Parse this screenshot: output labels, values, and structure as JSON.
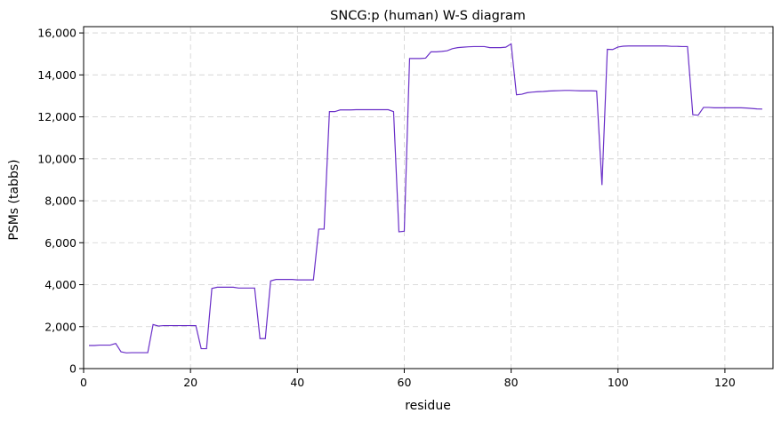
{
  "chart_data": {
    "type": "line",
    "title": "SNCG:p (human) W-S diagram",
    "xlabel": "residue",
    "ylabel": "PSMs (tabbs)",
    "xlim": [
      0,
      129
    ],
    "ylim": [
      0,
      16300
    ],
    "xticks": [
      0,
      20,
      40,
      60,
      80,
      100,
      120
    ],
    "xtick_labels": [
      "0",
      "20",
      "40",
      "60",
      "80",
      "100",
      "120"
    ],
    "yticks": [
      0,
      2000,
      4000,
      6000,
      8000,
      10000,
      12000,
      14000,
      16000
    ],
    "ytick_labels": [
      "0",
      "2,000",
      "4,000",
      "6,000",
      "8,000",
      "10,000",
      "12,000",
      "14,000",
      "16,000"
    ],
    "grid": true,
    "line_color": "#6a2fc8",
    "x": [
      1,
      2,
      3,
      4,
      5,
      6,
      7,
      8,
      9,
      10,
      11,
      12,
      13,
      14,
      15,
      16,
      17,
      18,
      19,
      20,
      21,
      22,
      23,
      24,
      25,
      26,
      27,
      28,
      29,
      30,
      31,
      32,
      33,
      34,
      35,
      36,
      37,
      38,
      39,
      40,
      41,
      42,
      43,
      44,
      45,
      46,
      47,
      48,
      49,
      50,
      51,
      52,
      53,
      54,
      55,
      56,
      57,
      58,
      59,
      60,
      61,
      62,
      63,
      64,
      65,
      66,
      67,
      68,
      69,
      70,
      71,
      72,
      73,
      74,
      75,
      76,
      77,
      78,
      79,
      80,
      81,
      82,
      83,
      84,
      85,
      86,
      87,
      88,
      89,
      90,
      91,
      92,
      93,
      94,
      95,
      96,
      97,
      98,
      99,
      100,
      101,
      102,
      103,
      104,
      105,
      106,
      107,
      108,
      109,
      110,
      111,
      112,
      113,
      114,
      115,
      116,
      117,
      118,
      119,
      120,
      121,
      122,
      123,
      124,
      125,
      126,
      127
    ],
    "y": [
      1100,
      1100,
      1120,
      1120,
      1120,
      1200,
      800,
      750,
      760,
      760,
      760,
      760,
      2100,
      2030,
      2050,
      2050,
      2050,
      2050,
      2050,
      2050,
      2050,
      950,
      950,
      3820,
      3880,
      3880,
      3880,
      3880,
      3840,
      3840,
      3840,
      3840,
      1430,
      1430,
      4180,
      4250,
      4250,
      4250,
      4250,
      4230,
      4230,
      4230,
      4230,
      6650,
      6650,
      12250,
      12250,
      12330,
      12330,
      12330,
      12340,
      12340,
      12340,
      12340,
      12340,
      12340,
      12340,
      12250,
      6520,
      6550,
      14780,
      14780,
      14780,
      14800,
      15100,
      15100,
      15120,
      15150,
      15250,
      15300,
      15320,
      15340,
      15350,
      15350,
      15350,
      15300,
      15300,
      15300,
      15320,
      15480,
      13050,
      13080,
      13150,
      13180,
      13200,
      13210,
      13230,
      13240,
      13250,
      13260,
      13260,
      13250,
      13240,
      13240,
      13240,
      13230,
      8750,
      15220,
      15210,
      15330,
      15370,
      15380,
      15380,
      15380,
      15380,
      15380,
      15380,
      15380,
      15380,
      15360,
      15360,
      15350,
      15350,
      12100,
      12080,
      12450,
      12450,
      12430,
      12430,
      12430,
      12430,
      12430,
      12430,
      12420,
      12400,
      12380,
      12370
    ]
  }
}
